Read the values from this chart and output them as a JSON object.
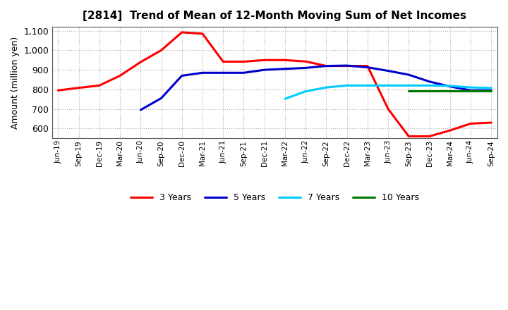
{
  "title": "[2814]  Trend of Mean of 12-Month Moving Sum of Net Incomes",
  "ylabel": "Amount (million yen)",
  "ylim": [
    550,
    1120
  ],
  "ytick_labels": [
    "600",
    "700",
    "800",
    "900",
    "1,000",
    "1,100"
  ],
  "ytick_vals": [
    600,
    700,
    800,
    900,
    1000,
    1100
  ],
  "background_color": "#ffffff",
  "grid_color": "#b0b0b0",
  "xtick_labels": [
    "Jun-19",
    "Sep-19",
    "Dec-19",
    "Mar-20",
    "Jun-20",
    "Sep-20",
    "Dec-20",
    "Mar-21",
    "Jun-21",
    "Sep-21",
    "Dec-21",
    "Mar-22",
    "Jun-22",
    "Sep-22",
    "Dec-22",
    "Mar-23",
    "Jun-23",
    "Sep-23",
    "Dec-23",
    "Mar-24",
    "Jun-24",
    "Sep-24"
  ],
  "series": {
    "3 Years": {
      "color": "#ff0000",
      "xi": [
        0,
        1,
        2,
        3,
        4,
        5,
        6,
        7,
        8,
        9,
        10,
        11,
        12,
        13,
        14,
        15,
        16,
        17,
        18,
        19,
        20,
        21
      ],
      "y": [
        795,
        808,
        820,
        870,
        940,
        1000,
        1092,
        1085,
        942,
        942,
        950,
        950,
        943,
        920,
        920,
        920,
        700,
        560,
        560,
        590,
        625,
        630
      ]
    },
    "5 Years": {
      "color": "#0000cc",
      "xi": [
        4,
        5,
        6,
        7,
        8,
        9,
        10,
        11,
        12,
        13,
        14,
        15,
        16,
        17,
        18,
        19,
        20,
        21
      ],
      "y": [
        695,
        755,
        870,
        885,
        885,
        885,
        900,
        905,
        910,
        920,
        922,
        913,
        895,
        875,
        840,
        815,
        795,
        795
      ]
    },
    "7 Years": {
      "color": "#00ccff",
      "xi": [
        11,
        12,
        13,
        14,
        15,
        16,
        17,
        18,
        19,
        20,
        21
      ],
      "y": [
        752,
        790,
        810,
        820,
        820,
        820,
        820,
        820,
        818,
        810,
        807
      ]
    },
    "10 Years": {
      "color": "#007700",
      "xi": [
        17,
        18,
        19,
        20,
        21
      ],
      "y": [
        793,
        793,
        793,
        793,
        793
      ]
    }
  }
}
